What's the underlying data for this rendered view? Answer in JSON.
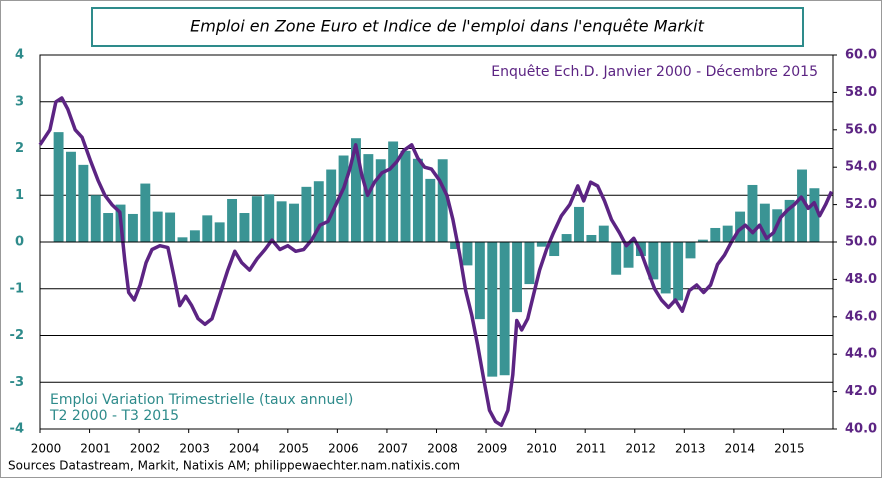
{
  "chart_data": {
    "type": "combo",
    "title": "Emploi en Zone Euro et Indice de l'emploi  dans l'enquête Markit",
    "annotations": [
      "Enquête Ech.D. Janvier 2000 - Décembre 2015",
      "Emploi Variation Trimestrielle  (taux annuel)",
      "T2 2000 - T3 2015"
    ],
    "source": "Sources Datastream, Markit, Natixis AM; philippewaechter.nam.natixis.com",
    "xlim": [
      2000,
      2016
    ],
    "xticks": [
      2000,
      2001,
      2002,
      2003,
      2004,
      2005,
      2006,
      2007,
      2008,
      2009,
      2010,
      2011,
      2012,
      2013,
      2014,
      2015
    ],
    "ylim": [
      -4,
      4
    ],
    "yticks": [
      -4,
      -3,
      -2,
      -1,
      0,
      1,
      2,
      3,
      4
    ],
    "y2lim": [
      40,
      60
    ],
    "y2ticks": [
      {
        "value": 40,
        "label": "40.0"
      },
      {
        "value": 42,
        "label": "42.0"
      },
      {
        "value": 44,
        "label": "44.0"
      },
      {
        "value": 46,
        "label": "46.0"
      },
      {
        "value": 48,
        "label": "48.0"
      },
      {
        "value": 50,
        "label": "50.0"
      },
      {
        "value": 52,
        "label": "52.0"
      },
      {
        "value": 54,
        "label": "54.0"
      },
      {
        "value": 56,
        "label": "56.0"
      },
      {
        "value": 58,
        "label": "58.0"
      },
      {
        "value": 60,
        "label": "60.0"
      }
    ],
    "grid": true,
    "series": [
      {
        "type": "bar",
        "color": "#3a9494",
        "x": [
          2000.25,
          2000.5,
          2000.75,
          2001,
          2001.25,
          2001.5,
          2001.75,
          2002,
          2002.25,
          2002.5,
          2002.75,
          2003,
          2003.25,
          2003.5,
          2003.75,
          2004,
          2004.25,
          2004.5,
          2004.75,
          2005,
          2005.25,
          2005.5,
          2005.75,
          2006,
          2006.25,
          2006.5,
          2006.75,
          2007,
          2007.25,
          2007.5,
          2007.75,
          2008,
          2008.25,
          2008.5,
          2008.75,
          2009,
          2009.25,
          2009.5,
          2009.75,
          2010,
          2010.25,
          2010.5,
          2010.75,
          2011,
          2011.25,
          2011.5,
          2011.75,
          2012,
          2012.25,
          2012.5,
          2012.75,
          2013,
          2013.25,
          2013.5,
          2013.75,
          2014,
          2014.25,
          2014.5,
          2014.75,
          2015,
          2015.25,
          2015.5
        ],
        "values": [
          2.35,
          1.93,
          1.65,
          1.0,
          0.62,
          0.8,
          0.6,
          1.25,
          0.65,
          0.63,
          0.1,
          0.25,
          0.57,
          0.42,
          0.92,
          0.62,
          0.98,
          1.02,
          0.87,
          0.82,
          1.18,
          1.3,
          1.55,
          1.85,
          2.22,
          1.88,
          1.77,
          2.15,
          1.95,
          1.78,
          1.35,
          1.77,
          -0.15,
          -0.5,
          -1.65,
          -2.88,
          -2.85,
          -1.5,
          -0.9,
          -0.1,
          -0.3,
          0.17,
          0.75,
          0.15,
          0.35,
          -0.7,
          -0.55,
          -0.3,
          -0.8,
          -1.1,
          -1.25,
          -0.35,
          0.05,
          0.3,
          0.35,
          0.65,
          1.22,
          0.82,
          0.7,
          0.9,
          1.55,
          1.15
        ]
      },
      {
        "type": "line",
        "axis": "y2",
        "color": "#5c2483",
        "x": [
          2000.0,
          2000.2,
          2000.32,
          2000.44,
          2000.56,
          2000.71,
          2000.85,
          2001.01,
          2001.17,
          2001.31,
          2001.45,
          2001.61,
          2001.71,
          2001.79,
          2001.9,
          2002.02,
          2002.14,
          2002.26,
          2002.42,
          2002.58,
          2002.7,
          2002.82,
          2002.94,
          2003.06,
          2003.19,
          2003.33,
          2003.47,
          2003.63,
          2003.79,
          2003.93,
          2004.07,
          2004.23,
          2004.38,
          2004.54,
          2004.68,
          2004.84,
          2005.0,
          2005.16,
          2005.32,
          2005.48,
          2005.65,
          2005.81,
          2005.97,
          2006.13,
          2006.25,
          2006.37,
          2006.49,
          2006.61,
          2006.75,
          2006.9,
          2007.06,
          2007.2,
          2007.34,
          2007.5,
          2007.62,
          2007.76,
          2007.9,
          2008.06,
          2008.21,
          2008.33,
          2008.47,
          2008.59,
          2008.71,
          2008.83,
          2008.95,
          2009.07,
          2009.19,
          2009.31,
          2009.44,
          2009.54,
          2009.62,
          2009.72,
          2009.84,
          2009.96,
          2010.08,
          2010.22,
          2010.36,
          2010.52,
          2010.69,
          2010.85,
          2010.97,
          2011.11,
          2011.25,
          2011.39,
          2011.53,
          2011.69,
          2011.83,
          2011.98,
          2012.12,
          2012.26,
          2012.4,
          2012.54,
          2012.68,
          2012.82,
          2012.96,
          2013.1,
          2013.25,
          2013.39,
          2013.53,
          2013.67,
          2013.81,
          2013.95,
          2014.09,
          2014.23,
          2014.38,
          2014.52,
          2014.66,
          2014.8,
          2014.94,
          2015.08,
          2015.22,
          2015.36,
          2015.5,
          2015.62,
          2015.73,
          2015.85,
          2015.97
        ],
        "values": [
          55.2,
          56.0,
          57.5,
          57.7,
          57.1,
          56.0,
          55.6,
          54.4,
          53.3,
          52.5,
          52.0,
          51.6,
          49.0,
          47.3,
          46.9,
          47.7,
          48.9,
          49.6,
          49.8,
          49.7,
          48.2,
          46.6,
          47.1,
          46.6,
          45.9,
          45.6,
          45.9,
          47.2,
          48.5,
          49.5,
          48.9,
          48.5,
          49.1,
          49.6,
          50.1,
          49.6,
          49.8,
          49.5,
          49.6,
          50.1,
          50.9,
          51.1,
          52.0,
          52.9,
          53.9,
          55.2,
          53.6,
          52.5,
          53.2,
          53.7,
          53.9,
          54.3,
          54.9,
          55.2,
          54.5,
          54.0,
          53.9,
          53.3,
          52.5,
          51.2,
          49.3,
          47.4,
          46.1,
          44.5,
          42.7,
          41.0,
          40.4,
          40.2,
          41.0,
          42.9,
          45.8,
          45.3,
          45.9,
          47.2,
          48.5,
          49.6,
          50.5,
          51.4,
          52.0,
          53.0,
          52.2,
          53.2,
          53.0,
          52.2,
          51.2,
          50.5,
          49.8,
          50.2,
          49.5,
          48.5,
          47.5,
          46.9,
          46.5,
          46.9,
          46.3,
          47.4,
          47.7,
          47.3,
          47.7,
          48.8,
          49.3,
          50.0,
          50.6,
          50.9,
          50.5,
          50.9,
          50.2,
          50.5,
          51.3,
          51.7,
          52.0,
          52.4,
          51.8,
          52.1,
          51.4,
          52.0,
          52.7
        ]
      }
    ]
  }
}
